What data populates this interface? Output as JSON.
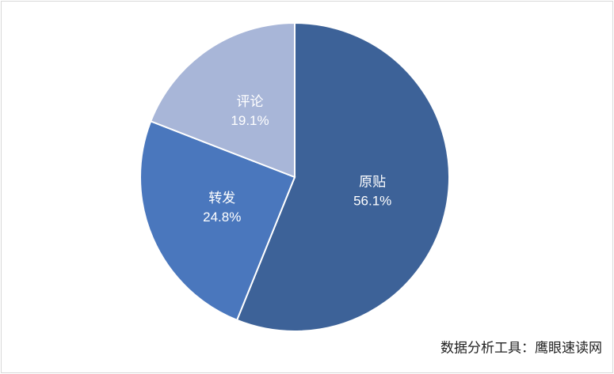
{
  "chart_data": {
    "type": "pie",
    "categories": [
      "原贴",
      "转发",
      "评论"
    ],
    "values": [
      56.1,
      24.8,
      19.1
    ],
    "value_labels": [
      "56.1%",
      "24.8%",
      "19.1%"
    ],
    "colors": [
      "#3d6298",
      "#4a77bd",
      "#a8b6d8"
    ],
    "source": "数据分析工具：鹰眼速读网"
  }
}
